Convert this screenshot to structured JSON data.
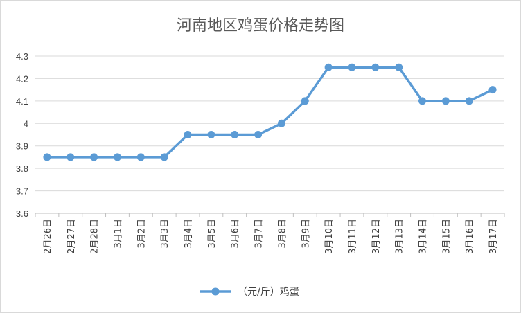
{
  "chart_data": {
    "type": "line",
    "title": "河南地区鸡蛋价格走势图",
    "categories": [
      "2月26日",
      "2月27日",
      "2月28日",
      "3月1日",
      "3月2日",
      "3月3日",
      "3月4日",
      "3月5日",
      "3月6日",
      "3月7日",
      "3月8日",
      "3月9日",
      "3月10日",
      "3月11日",
      "3月12日",
      "3月13日",
      "3月14日",
      "3月15日",
      "3月16日",
      "3月17日"
    ],
    "series": [
      {
        "name": "（元/斤）鸡蛋",
        "values": [
          3.85,
          3.85,
          3.85,
          3.85,
          3.85,
          3.85,
          3.95,
          3.95,
          3.95,
          3.95,
          4.0,
          4.1,
          4.25,
          4.25,
          4.25,
          4.25,
          4.1,
          4.1,
          4.1,
          4.15
        ]
      }
    ],
    "yticks": [
      "3.6",
      "3.7",
      "3.8",
      "3.9",
      "4",
      "4.1",
      "4.2",
      "4.3"
    ],
    "ylim": [
      3.6,
      4.3
    ],
    "grid": true,
    "legend": "bottom",
    "colors": {
      "series": "#5b9bd5",
      "grid": "#d9d9d9"
    }
  }
}
